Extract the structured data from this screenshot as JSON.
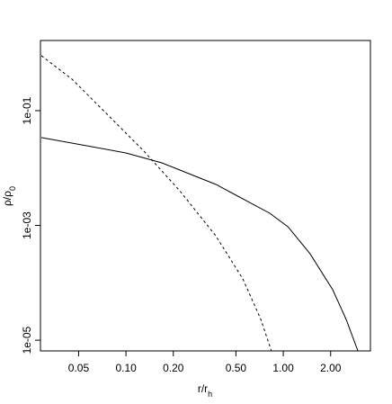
{
  "chart_data": {
    "type": "line",
    "x_label": {
      "text": "r/r",
      "sub": "h"
    },
    "y_label": {
      "text": "ρ/ρ",
      "sub": "0"
    },
    "log_x": true,
    "log_y": true,
    "xlim": [
      0.0286,
      3.58
    ],
    "ylim": [
      6.5e-06,
      1.67
    ],
    "xticks": [
      0.05,
      {
        "value": 0.1,
        "label": "0.10"
      },
      {
        "value": 0.2,
        "label": "0.20"
      },
      {
        "value": 0.5,
        "label": "0.50"
      },
      {
        "value": 1,
        "label": "1.00"
      },
      {
        "value": 2,
        "label": "2.00"
      }
    ],
    "yticks": [
      {
        "value": 0.1,
        "label": "1e-01"
      },
      {
        "value": 0.001,
        "label": "1e-03"
      },
      {
        "value": 1e-05,
        "label": "1e-05"
      }
    ],
    "series": [
      {
        "color": "#000000",
        "dash": false,
        "x": [
          0.029,
          0.1,
          0.169,
          0.372,
          0.82,
          1.07,
          1.48,
          2.06,
          2.51,
          2.98
        ],
        "values": [
          0.034,
          0.0183,
          0.0123,
          0.0052,
          0.00163,
          0.00095,
          0.00032,
          7.6e-05,
          2.3e-05,
          6.5e-06
        ]
      },
      {
        "color": "#000000",
        "dash": true,
        "x": [
          0.029,
          0.0454,
          0.0769,
          0.13,
          0.22,
          0.372,
          0.553,
          0.72,
          0.84
        ],
        "values": [
          0.906,
          0.354,
          0.0835,
          0.0197,
          0.004,
          0.00066,
          0.000117,
          2.3e-05,
          6.5e-06
        ]
      }
    ]
  }
}
